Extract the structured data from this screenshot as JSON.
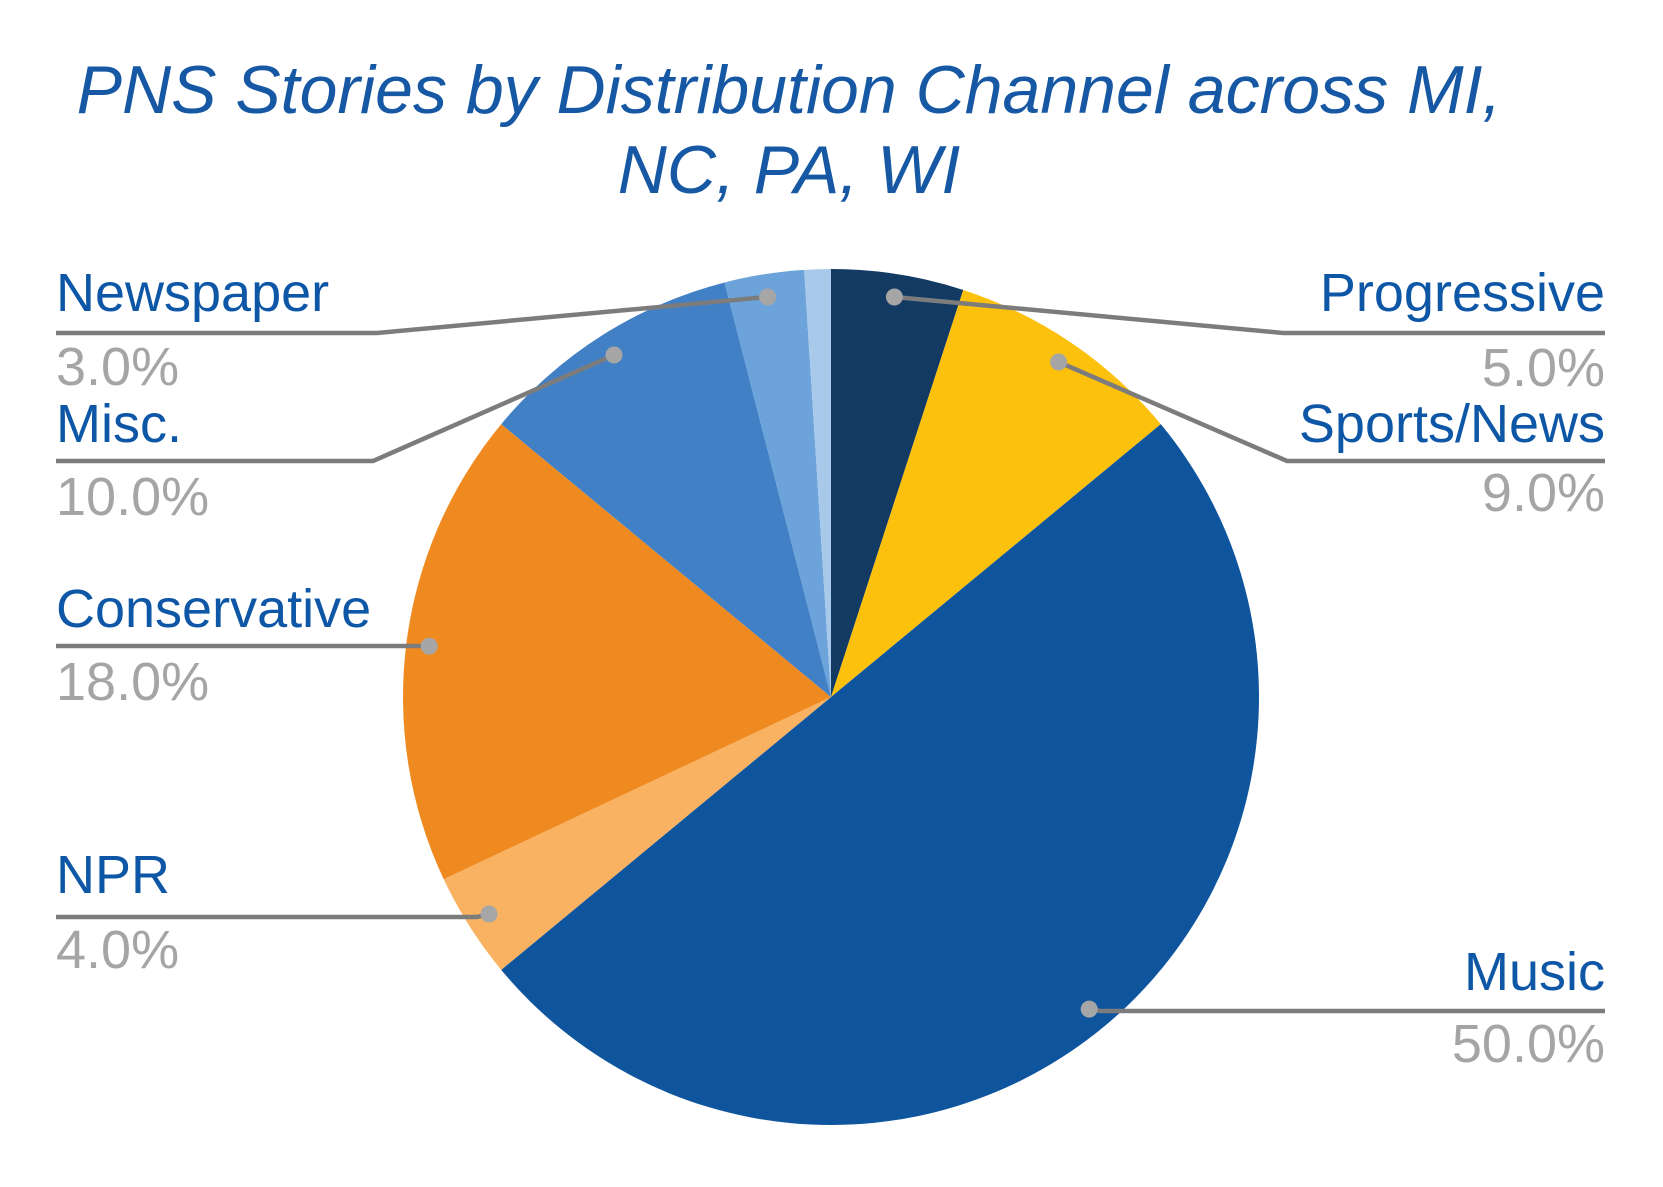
{
  "title_lines": [
    "PNS Stories by Distribution Channel across MI,",
    "NC, PA, WI"
  ],
  "colors": {
    "background": "#FFFFFF",
    "title_text": "#1658A3",
    "label_name_text": "#0E57A6",
    "label_pct_text": "#A5A5A5",
    "leader_line": "#7C7C7C",
    "leader_dot": "#A6A6A6"
  },
  "chart_data": {
    "type": "pie",
    "title": "PNS Stories by Distribution Channel across MI, NC, PA, WI",
    "start_position": "12-o'clock",
    "direction": "clockwise",
    "legend_position": "none (callout labels with leader lines)",
    "slices": [
      {
        "label": "Progressive",
        "value": 5.0,
        "pct_label": "5.0%",
        "color": "#123A62"
      },
      {
        "label": "Sports/News",
        "value": 9.0,
        "pct_label": "9.0%",
        "color": "#FCC10D"
      },
      {
        "label": "Music",
        "value": 50.0,
        "pct_label": "50.0%",
        "color": "#0F559E"
      },
      {
        "label": "NPR",
        "value": 4.0,
        "pct_label": "4.0%",
        "color": "#F8B262"
      },
      {
        "label": "Conservative",
        "value": 18.0,
        "pct_label": "18.0%",
        "color": "#EF8A21"
      },
      {
        "label": "Misc.",
        "value": 10.0,
        "pct_label": "10.0%",
        "color": "#4280C6"
      },
      {
        "label": "Newspaper",
        "value": 3.0,
        "pct_label": "3.0%",
        "color": "#6BA3DA"
      },
      {
        "label": "",
        "value": 1.0,
        "pct_label": "",
        "color": "#A9C9EA"
      }
    ]
  }
}
